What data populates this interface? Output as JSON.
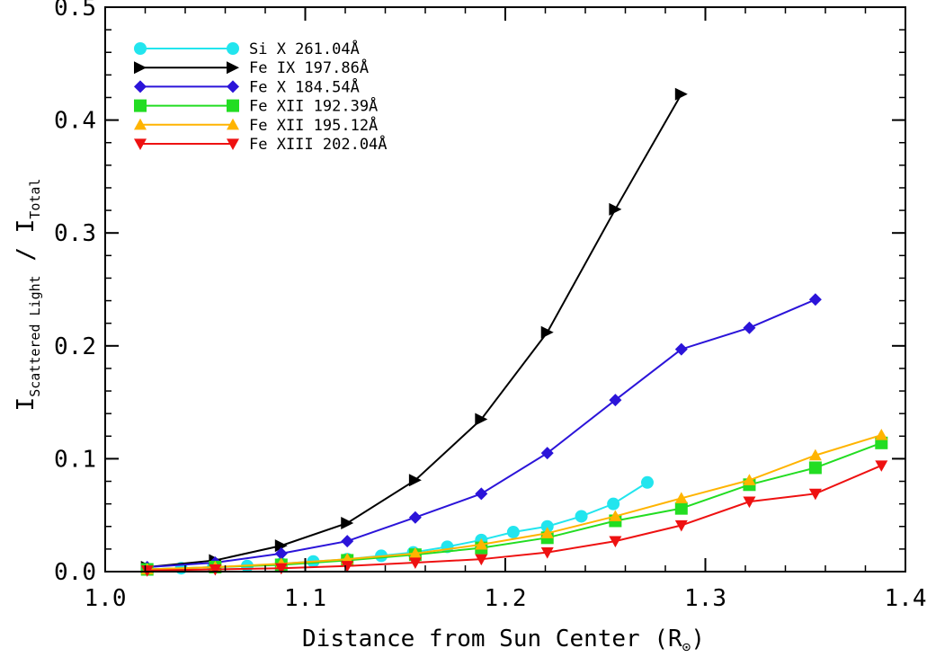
{
  "chart_data": {
    "type": "line",
    "title": "",
    "xlabel": "Distance from Sun Center (R",
    "xlabel_symbol": "⊙",
    "ylabel_main": "I",
    "ylabel_sub_num": "Scattered Light",
    "ylabel_sep": " / I",
    "ylabel_sub_den": "Total",
    "xlim": [
      1.0,
      1.4
    ],
    "ylim": [
      0.0,
      0.5
    ],
    "xticks": [
      "1.0",
      "1.1",
      "1.2",
      "1.3",
      "1.4"
    ],
    "yticks": [
      "0.0",
      "0.1",
      "0.2",
      "0.3",
      "0.4",
      "0.5"
    ],
    "xtick_values": [
      1.0,
      1.1,
      1.2,
      1.3,
      1.4
    ],
    "ytick_values": [
      0.0,
      0.1,
      0.2,
      0.3,
      0.4,
      0.5
    ],
    "grid": false,
    "legend_position": "top-left",
    "series": [
      {
        "name": "Si X 261.04Å",
        "color": "#22e5ee",
        "marker": "circle",
        "x": [
          1.021,
          1.038,
          1.054,
          1.071,
          1.088,
          1.104,
          1.121,
          1.138,
          1.154,
          1.171,
          1.188,
          1.204,
          1.221,
          1.238,
          1.254,
          1.271
        ],
        "y": [
          0.002,
          0.003,
          0.004,
          0.005,
          0.007,
          0.009,
          0.011,
          0.014,
          0.017,
          0.022,
          0.028,
          0.035,
          0.04,
          0.049,
          0.06,
          0.079
        ]
      },
      {
        "name": "Fe IX 197.86Å",
        "color": "#000000",
        "marker": "triangle-right",
        "x": [
          1.021,
          1.055,
          1.088,
          1.121,
          1.155,
          1.188,
          1.221,
          1.255,
          1.288
        ],
        "y": [
          0.004,
          0.01,
          0.023,
          0.043,
          0.081,
          0.135,
          0.212,
          0.321,
          0.423
        ]
      },
      {
        "name": "Fe X 184.54Å",
        "color": "#2b14d9",
        "marker": "diamond",
        "x": [
          1.021,
          1.055,
          1.088,
          1.121,
          1.155,
          1.188,
          1.221,
          1.255,
          1.288,
          1.322,
          1.355
        ],
        "y": [
          0.004,
          0.008,
          0.016,
          0.027,
          0.048,
          0.069,
          0.105,
          0.152,
          0.197,
          0.216,
          0.241
        ]
      },
      {
        "name": "Fe XII 192.39Å",
        "color": "#22dd22",
        "marker": "square",
        "x": [
          1.021,
          1.055,
          1.088,
          1.121,
          1.155,
          1.188,
          1.221,
          1.255,
          1.288,
          1.322,
          1.355,
          1.388
        ],
        "y": [
          0.002,
          0.004,
          0.006,
          0.01,
          0.015,
          0.021,
          0.03,
          0.045,
          0.056,
          0.077,
          0.092,
          0.114
        ]
      },
      {
        "name": "Fe XII 195.12Å",
        "color": "#ffb400",
        "marker": "triangle-up",
        "x": [
          1.021,
          1.055,
          1.088,
          1.121,
          1.155,
          1.188,
          1.221,
          1.255,
          1.288,
          1.322,
          1.355,
          1.388
        ],
        "y": [
          0.002,
          0.004,
          0.007,
          0.011,
          0.016,
          0.024,
          0.034,
          0.049,
          0.065,
          0.081,
          0.103,
          0.121
        ]
      },
      {
        "name": "Fe XIII 202.04Å",
        "color": "#ee1111",
        "marker": "triangle-down",
        "x": [
          1.021,
          1.055,
          1.088,
          1.121,
          1.155,
          1.188,
          1.221,
          1.255,
          1.288,
          1.322,
          1.355,
          1.388
        ],
        "y": [
          0.001,
          0.002,
          0.003,
          0.005,
          0.008,
          0.011,
          0.017,
          0.027,
          0.041,
          0.062,
          0.069,
          0.094
        ]
      }
    ]
  }
}
